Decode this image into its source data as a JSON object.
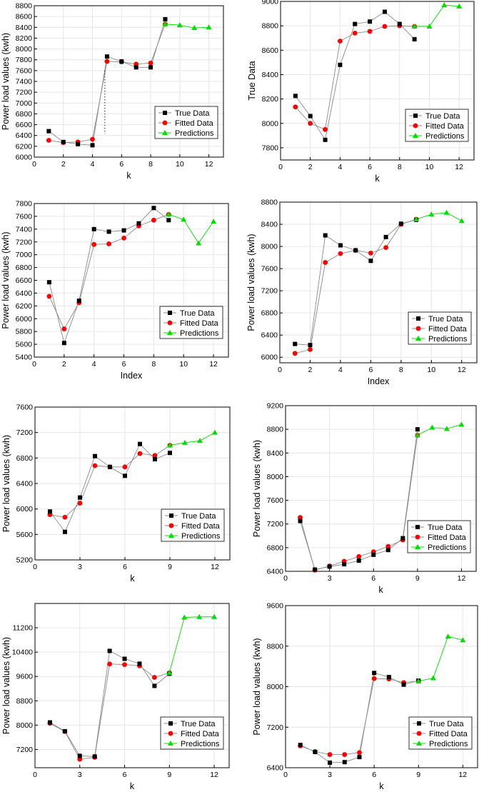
{
  "figure": {
    "series_names": [
      "True Data",
      "Fitted Data",
      "Predictions"
    ],
    "colors": {
      "true": "#000000",
      "fitted": "#ff0000",
      "pred": "#00dd00",
      "line_gray": "#8a8a8a",
      "grid": "#e6e6e6"
    }
  },
  "chart_data": [
    {
      "type": "line",
      "xlabel": "k",
      "ylabel": "Power load values (kwh)",
      "xlim": [
        0,
        13
      ],
      "xticks": [
        0,
        2,
        4,
        6,
        8,
        10,
        12
      ],
      "ylim": [
        6000,
        8800
      ],
      "yticks": [
        6000,
        6200,
        6400,
        6600,
        6800,
        7000,
        7200,
        7400,
        7600,
        7800,
        8000,
        8200,
        8400,
        8600,
        8800
      ],
      "legend": "lower-right",
      "series": [
        {
          "name": "True Data",
          "x": [
            1,
            2,
            3,
            4,
            5,
            6,
            7,
            8,
            9
          ],
          "y": [
            6480,
            6280,
            6240,
            6220,
            7860,
            7770,
            7660,
            7660,
            8550
          ]
        },
        {
          "name": "Fitted Data",
          "x": [
            1,
            2,
            3,
            4,
            5,
            6,
            7,
            8,
            9
          ],
          "y": [
            6310,
            6270,
            6280,
            6330,
            7770,
            7760,
            7720,
            7740,
            8460
          ]
        },
        {
          "name": "Predictions",
          "x": [
            9,
            10,
            11,
            12
          ],
          "y": [
            8460,
            8440,
            8390,
            8400
          ]
        }
      ]
    },
    {
      "type": "line",
      "xlabel": "k",
      "ylabel": "True Data",
      "xlim": [
        0,
        13
      ],
      "xticks": [
        0,
        2,
        4,
        6,
        8,
        10,
        12
      ],
      "ylim": [
        7700,
        9000
      ],
      "yticks": [
        7800,
        8000,
        8200,
        8400,
        8600,
        8800,
        9000
      ],
      "legend": "lower-right",
      "series": [
        {
          "name": "True Data",
          "x": [
            1,
            2,
            3,
            4,
            5,
            6,
            7,
            8,
            9
          ],
          "y": [
            8225,
            8060,
            7865,
            8480,
            8815,
            8835,
            8915,
            8815,
            8690
          ]
        },
        {
          "name": "Fitted Data",
          "x": [
            1,
            2,
            3,
            4,
            5,
            6,
            7,
            8,
            9
          ],
          "y": [
            8135,
            8000,
            7950,
            8675,
            8740,
            8755,
            8795,
            8800,
            8795
          ]
        },
        {
          "name": "Predictions",
          "x": [
            9,
            10,
            11,
            12
          ],
          "y": [
            8795,
            8795,
            8970,
            8960
          ]
        }
      ]
    },
    {
      "type": "line",
      "xlabel": "Index",
      "ylabel": "Power load values (kwh)",
      "xlim": [
        0,
        13
      ],
      "xticks": [
        0,
        2,
        4,
        6,
        8,
        10,
        12
      ],
      "ylim": [
        5400,
        7800
      ],
      "yticks": [
        5400,
        5600,
        5800,
        6000,
        6200,
        6400,
        6600,
        6800,
        7000,
        7200,
        7400,
        7600,
        7800
      ],
      "legend": "lower-right",
      "series": [
        {
          "name": "True Data",
          "x": [
            1,
            2,
            3,
            4,
            5,
            6,
            7,
            8,
            9
          ],
          "y": [
            6570,
            5620,
            6280,
            7400,
            7360,
            7380,
            7490,
            7730,
            7540
          ]
        },
        {
          "name": "Fitted Data",
          "x": [
            1,
            2,
            3,
            4,
            5,
            6,
            7,
            8,
            9
          ],
          "y": [
            6350,
            5840,
            6250,
            7160,
            7170,
            7260,
            7450,
            7540,
            7630
          ]
        },
        {
          "name": "Predictions",
          "x": [
            9,
            10,
            11,
            12
          ],
          "y": [
            7630,
            7550,
            7180,
            7520
          ]
        }
      ]
    },
    {
      "type": "line",
      "xlabel": "Index",
      "ylabel": "Power load values (kwh)",
      "xlim": [
        0,
        13
      ],
      "xticks": [
        0,
        2,
        4,
        6,
        8,
        10,
        12
      ],
      "ylim": [
        5900,
        8800
      ],
      "yticks": [
        6000,
        6400,
        6800,
        7200,
        7600,
        8000,
        8400,
        8800
      ],
      "legend": "lower-right",
      "series": [
        {
          "name": "True Data",
          "x": [
            1,
            2,
            3,
            4,
            5,
            6,
            7,
            8,
            9
          ],
          "y": [
            6240,
            6220,
            8200,
            8020,
            7930,
            7740,
            8170,
            8410,
            8480
          ]
        },
        {
          "name": "Fitted Data",
          "x": [
            1,
            2,
            3,
            4,
            5,
            6,
            7,
            8,
            9
          ],
          "y": [
            6070,
            6140,
            7710,
            7870,
            7930,
            7880,
            7980,
            8400,
            8490
          ]
        },
        {
          "name": "Predictions",
          "x": [
            9,
            10,
            11,
            12
          ],
          "y": [
            8490,
            8580,
            8610,
            8460
          ]
        }
      ]
    },
    {
      "type": "line",
      "xlabel": "k",
      "ylabel": "Power load values (kwh)",
      "xlim": [
        0,
        13
      ],
      "xticks": [
        0,
        3,
        6,
        9,
        12
      ],
      "ylim": [
        5200,
        7600
      ],
      "yticks": [
        5200,
        5600,
        6000,
        6400,
        6800,
        7200,
        7600
      ],
      "legend": "lower-right",
      "series": [
        {
          "name": "True Data",
          "x": [
            1,
            2,
            3,
            4,
            5,
            6,
            7,
            8,
            9
          ],
          "y": [
            5960,
            5640,
            6180,
            6830,
            6660,
            6520,
            7020,
            6780,
            6880
          ]
        },
        {
          "name": "Fitted Data",
          "x": [
            1,
            2,
            3,
            4,
            5,
            6,
            7,
            8,
            9
          ],
          "y": [
            5910,
            5870,
            6090,
            6680,
            6660,
            6660,
            6870,
            6840,
            7000
          ]
        },
        {
          "name": "Predictions",
          "x": [
            9,
            10,
            11,
            12
          ],
          "y": [
            7000,
            7040,
            7070,
            7200
          ]
        }
      ]
    },
    {
      "type": "line",
      "xlabel": "k",
      "ylabel": "Power load values (kwh)",
      "xlim": [
        0,
        13
      ],
      "xticks": [
        0,
        3,
        6,
        9,
        12
      ],
      "ylim": [
        6400,
        9200
      ],
      "yticks": [
        6400,
        6800,
        7200,
        7600,
        8000,
        8400,
        8800,
        9200
      ],
      "legend": "lower-right",
      "series": [
        {
          "name": "True Data",
          "x": [
            1,
            2,
            3,
            4,
            5,
            6,
            7,
            8,
            9
          ],
          "y": [
            7250,
            6430,
            6480,
            6520,
            6580,
            6680,
            6760,
            6960,
            8800
          ]
        },
        {
          "name": "Fitted Data",
          "x": [
            1,
            2,
            3,
            4,
            5,
            6,
            7,
            8,
            9
          ],
          "y": [
            7310,
            6420,
            6490,
            6570,
            6650,
            6730,
            6820,
            6930,
            8700
          ]
        },
        {
          "name": "Predictions",
          "x": [
            9,
            10,
            11,
            12
          ],
          "y": [
            8700,
            8830,
            8810,
            8880
          ]
        }
      ]
    },
    {
      "type": "line",
      "xlabel": "k",
      "ylabel": "Power load values (kwh)",
      "xlim": [
        0,
        13
      ],
      "xticks": [
        0,
        3,
        6,
        9,
        12
      ],
      "ylim": [
        6600,
        12000
      ],
      "yticks": [
        7200,
        8000,
        8800,
        9600,
        10400,
        11200
      ],
      "legend": "lower-right",
      "series": [
        {
          "name": "True Data",
          "x": [
            1,
            2,
            3,
            4,
            5,
            6,
            7,
            8,
            9
          ],
          "y": [
            8090,
            7800,
            6990,
            6970,
            10440,
            10180,
            10020,
            9290,
            9690
          ]
        },
        {
          "name": "Fitted Data",
          "x": [
            1,
            2,
            3,
            4,
            5,
            6,
            7,
            8,
            9
          ],
          "y": [
            8060,
            7790,
            6880,
            6940,
            10010,
            9990,
            9950,
            9570,
            9720
          ]
        },
        {
          "name": "Predictions",
          "x": [
            9,
            10,
            11,
            12
          ],
          "y": [
            9720,
            11540,
            11560,
            11560
          ]
        }
      ]
    },
    {
      "type": "line",
      "xlabel": "k",
      "ylabel": "Power load values (kwh)",
      "xlim": [
        0,
        13
      ],
      "xticks": [
        0,
        3,
        6,
        9,
        12
      ],
      "ylim": [
        6400,
        9600
      ],
      "yticks": [
        6400,
        7200,
        8000,
        8800,
        9600
      ],
      "legend": "lower-right",
      "series": [
        {
          "name": "True Data",
          "x": [
            1,
            2,
            3,
            4,
            5,
            6,
            7,
            8,
            9
          ],
          "y": [
            6850,
            6710,
            6500,
            6510,
            6610,
            8270,
            8190,
            8040,
            8120
          ]
        },
        {
          "name": "Fitted Data",
          "x": [
            1,
            2,
            3,
            4,
            5,
            6,
            7,
            8,
            9
          ],
          "y": [
            6830,
            6720,
            6660,
            6660,
            6700,
            8160,
            8150,
            8080,
            8110
          ]
        },
        {
          "name": "Predictions",
          "x": [
            9,
            10,
            11,
            12
          ],
          "y": [
            8110,
            8170,
            8990,
            8920
          ]
        }
      ]
    }
  ]
}
